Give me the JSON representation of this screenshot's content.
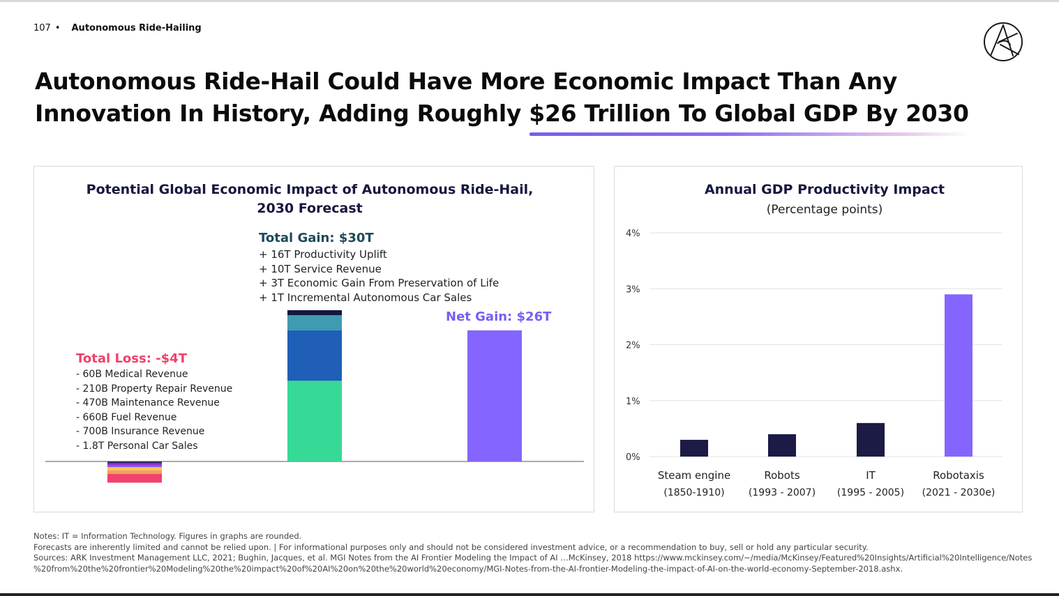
{
  "header": {
    "page_number": "107",
    "separator": "•",
    "section": "Autonomous Ride-Hailing"
  },
  "title": {
    "line1": "Autonomous Ride-Hail Could Have More Economic Impact Than Any",
    "line2": "Innovation In History, Adding Roughly $26 Trillion To Global GDP By 2030"
  },
  "brand": {
    "logo_icon": "ark-logo-icon",
    "accent": "#7b5cf0"
  },
  "left_panel": {
    "title_line1": "Potential Global Economic Impact of Autonomous Ride-Hail,",
    "title_line2": "2030 Forecast",
    "gain": {
      "title": "Total Gain: $30T",
      "items": [
        "+ 16T Productivity Uplift",
        "+ 10T Service Revenue",
        "+ 3T Economic Gain From Preservation of Life",
        "+ 1T Incremental Autonomous Car Sales"
      ]
    },
    "loss": {
      "title": "Total Loss: -$4T",
      "items": [
        "- 60B Medical Revenue",
        "- 210B Property Repair Revenue",
        "- 470B Maintenance Revenue",
        "- 660B Fuel Revenue",
        "- 700B Insurance Revenue",
        "- 1.8T Personal Car Sales"
      ]
    },
    "net_label": "Net Gain: $26T"
  },
  "right_panel": {
    "title": "Annual GDP Productivity Impact",
    "subtitle": "(Percentage points)"
  },
  "notes": {
    "line1": "Notes: IT = Information Technology. Figures in graphs are rounded.",
    "line2": "Forecasts are inherently limited and cannot be relied upon. | For informational purposes only and should not be considered investment advice, or a recommendation to buy, sell or hold any particular security.",
    "line3": "Sources: ARK Investment Management LLC, 2021; Bughin, Jacques, et al. MGI Notes from the AI Frontier Modeling the Impact of AI …McKinsey, 2018 https://www.mckinsey.com/~/media/McKinsey/Featured%20Insights/Artificial%20Intelligence/Notes",
    "line4": "%20from%20the%20frontier%20Modeling%20the%20impact%20of%20AI%20on%20the%20world%20economy/MGI-Notes-from-the-AI-frontier-Modeling-the-impact-of-AI-on-the-world-economy-September-2018.ashx."
  },
  "chart_data": [
    {
      "type": "bar",
      "stacked": true,
      "unit": "trillion USD",
      "categories": [
        "Total Loss",
        "Total Gain",
        "Net Gain"
      ],
      "series": [
        {
          "name": "Productivity Uplift",
          "values": [
            0,
            16,
            0
          ],
          "color": "#36d995"
        },
        {
          "name": "Service Revenue",
          "values": [
            0,
            10,
            0
          ],
          "color": "#1f5fb8"
        },
        {
          "name": "Economic Gain From Preservation of Life",
          "values": [
            0,
            3,
            0
          ],
          "color": "#3f9bb0"
        },
        {
          "name": "Incremental Autonomous Car Sales",
          "values": [
            0,
            1,
            0
          ],
          "color": "#161640"
        },
        {
          "name": "Medical Revenue",
          "values": [
            -0.06,
            0,
            0
          ],
          "color": "#2f2f6e"
        },
        {
          "name": "Property Repair Revenue",
          "values": [
            -0.21,
            0,
            0
          ],
          "color": "#9b2fc0"
        },
        {
          "name": "Maintenance Revenue",
          "values": [
            -0.47,
            0,
            0
          ],
          "color": "#7a5cf5"
        },
        {
          "name": "Fuel Revenue",
          "values": [
            -0.66,
            0,
            0
          ],
          "color": "#f7c74a"
        },
        {
          "name": "Insurance Revenue",
          "values": [
            -0.7,
            0,
            0
          ],
          "color": "#f79a6a"
        },
        {
          "name": "Personal Car Sales",
          "values": [
            -1.8,
            0,
            0
          ],
          "color": "#f0426b"
        },
        {
          "name": "Net Gain",
          "values": [
            0,
            0,
            26
          ],
          "color": "#8466ff"
        }
      ],
      "ylim": [
        -4,
        30
      ],
      "grid": false,
      "legend": "none"
    },
    {
      "type": "bar",
      "title": "Annual GDP Productivity Impact",
      "subtitle": "(Percentage points)",
      "categories": [
        {
          "name": "Steam engine",
          "period": "(1850-1910)"
        },
        {
          "name": "Robots",
          "period": "(1993 - 2007)"
        },
        {
          "name": "IT",
          "period": "(1995 - 2005)"
        },
        {
          "name": "Robotaxis",
          "period": "(2021 - 2030e)"
        }
      ],
      "values": [
        0.3,
        0.4,
        0.6,
        2.9
      ],
      "colors": [
        "#1b1b45",
        "#1b1b45",
        "#1b1b45",
        "#8466ff"
      ],
      "yticks": [
        "0%",
        "1%",
        "2%",
        "3%",
        "4%"
      ],
      "ylim": [
        0,
        4
      ],
      "grid": true,
      "legend": "none"
    }
  ]
}
